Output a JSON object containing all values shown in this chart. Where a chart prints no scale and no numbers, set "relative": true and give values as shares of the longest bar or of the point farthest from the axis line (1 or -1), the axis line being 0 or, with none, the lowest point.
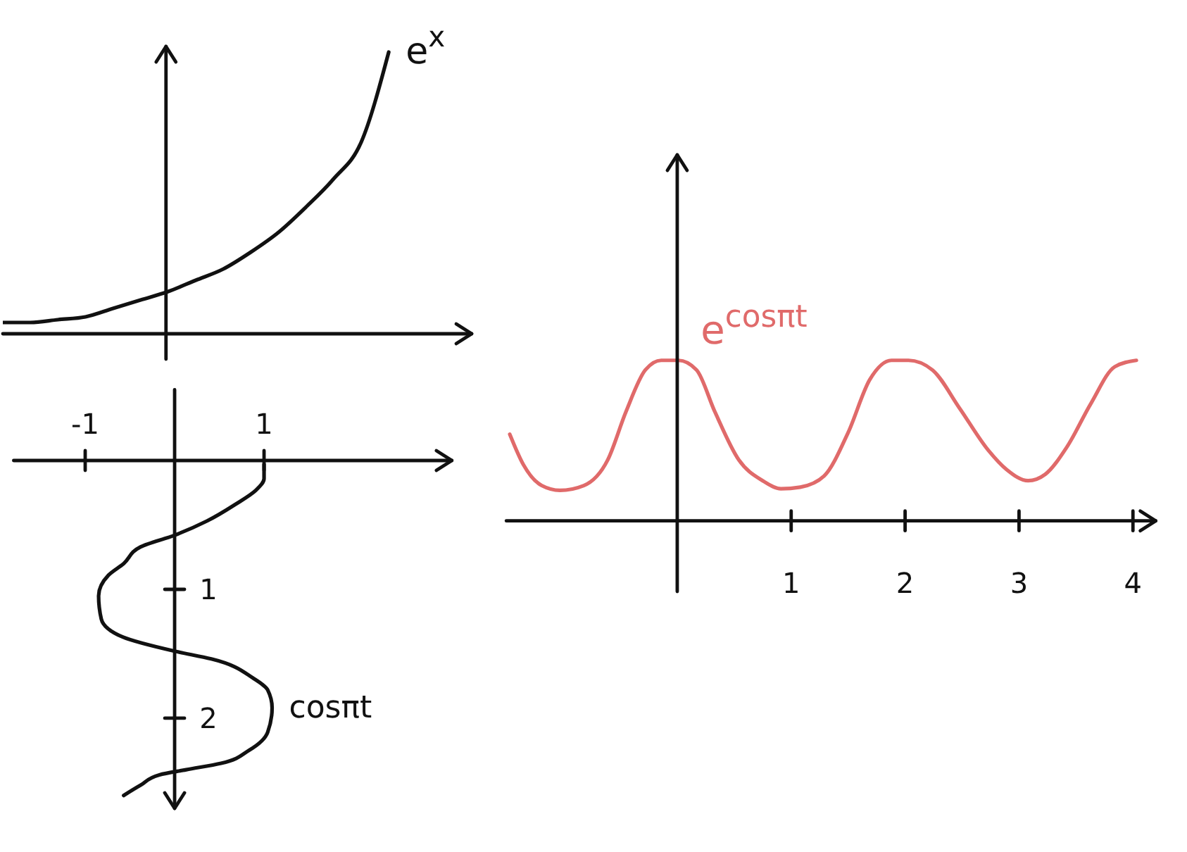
{
  "chart_data": [
    {
      "type": "line",
      "relative": true,
      "categories": [
        null,
        null,
        null,
        null,
        null,
        null,
        null,
        null,
        null,
        null,
        null,
        null,
        null,
        null,
        null
      ],
      "series": [
        {
          "name": "e$^{x}$",
          "color": "#111111",
          "values": [
            0.04,
            0.04,
            0.05,
            0.06,
            0.09,
            0.12,
            0.15,
            0.19,
            0.23,
            0.29,
            0.36,
            0.45,
            0.55,
            0.68,
            1
          ]
        }
      ]
    },
    {
      "type": "line",
      "xlim": [
        -1.8,
        3.1
      ],
      "xticks": [
        -1,
        1
      ],
      "ylim": [
        2.7,
        -0.55
      ],
      "yticks": [
        1,
        2
      ],
      "series": [
        {
          "name": "cosπt",
          "color": "#111111",
          "x": [
            1.0,
            1.0,
            0.91,
            0.68,
            0.36,
            0,
            -0.38,
            -0.57,
            -0.74,
            -0.85,
            -0.82,
            -0.58,
            0,
            0.41,
            0.88,
            1.04,
            1.09,
            1.04,
            0.83,
            0.52,
            0.13,
            -0.17,
            -0.38,
            -0.57
          ],
          "values": [
            0.03,
            0.14,
            0.23,
            0.34,
            0.47,
            0.58,
            0.67,
            0.8,
            0.89,
            1.05,
            1.23,
            1.37,
            1.48,
            1.54,
            1.69,
            1.78,
            1.92,
            2.11,
            2.25,
            2.35,
            2.4,
            2.44,
            2.52,
            2.6
          ]
        }
      ]
    },
    {
      "type": "line",
      "relative": true,
      "xlim": [
        -1.5,
        4.2
      ],
      "xticks": [
        1,
        2,
        3,
        4
      ],
      "series": [
        {
          "name": "e$^{cosπt}$",
          "color": "#e06a6a",
          "x": [
            -1.47,
            -1.35,
            -1.19,
            -1.03,
            -0.82,
            -0.61,
            -0.45,
            -0.28,
            -0.14,
            0.01,
            0.17,
            0.33,
            0.54,
            0.75,
            0.91,
            1.08,
            1.29,
            1.5,
            1.69,
            1.88,
            2.03,
            2.24,
            2.48,
            2.73,
            2.89,
            3.08,
            3.23,
            3.42,
            3.63,
            3.84,
            4.03
          ],
          "values": [
            0.54,
            0.35,
            0.22,
            0.19,
            0.22,
            0.38,
            0.68,
            0.94,
            1,
            1,
            0.94,
            0.68,
            0.38,
            0.25,
            0.2,
            0.21,
            0.28,
            0.55,
            0.88,
            1,
            1,
            0.94,
            0.7,
            0.44,
            0.32,
            0.25,
            0.29,
            0.46,
            0.73,
            0.96,
            1
          ]
        }
      ]
    }
  ]
}
